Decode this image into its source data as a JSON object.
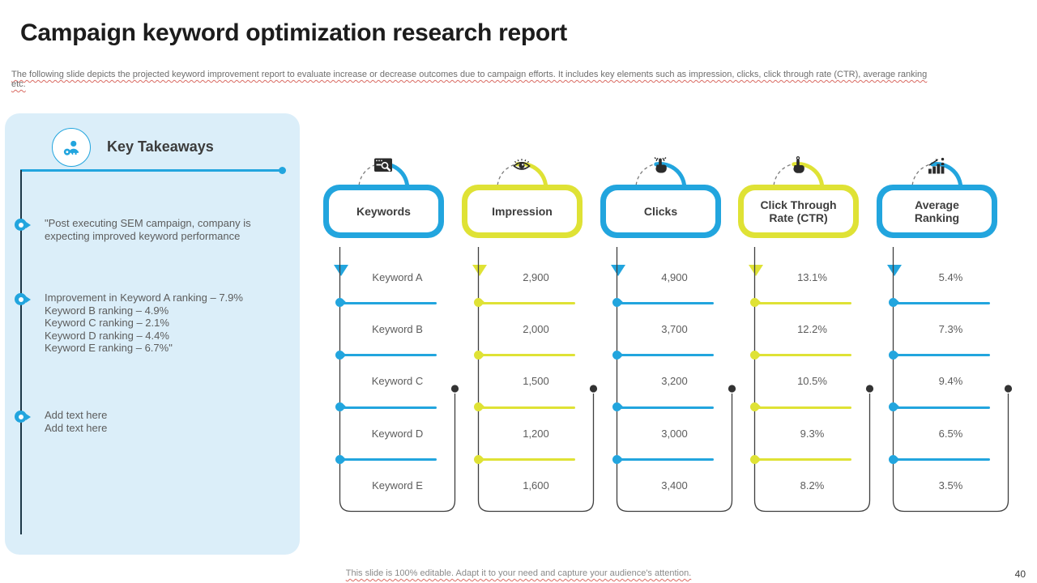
{
  "slide": {
    "title": "Campaign keyword optimization research report",
    "subtitle": "The following slide depicts the projected keyword improvement report to evaluate increase or decrease outcomes due to campaign efforts. It includes key elements such as impression, clicks, click through rate (CTR), average ranking etc.",
    "footer": "This slide is 100% editable. Adapt it to your need and capture your audience's attention.",
    "page_number": "40"
  },
  "colors": {
    "blue": "#22A5DE",
    "yellow": "#DFE235",
    "panel_bg": "#DBEEF9",
    "dark_line": "#1E3848",
    "box_line": "#3F3F3F",
    "text_gray": "#5C5C5C",
    "red_underline": "#D96A62"
  },
  "key_takeaways": {
    "icon": "person-key-icon",
    "title": "Key Takeaways",
    "bullets": [
      {
        "lines": [
          "\"Post executing SEM campaign, company is expecting improved keyword performance"
        ]
      },
      {
        "lines": [
          "Improvement in Keyword A ranking – 7.9%",
          "Keyword B ranking – 4.9%",
          "Keyword C ranking – 2.1%",
          "Keyword D ranking – 4.4%",
          "Keyword E ranking – 6.7%\""
        ]
      },
      {
        "lines": [
          "Add text here",
          "Add text here"
        ]
      }
    ]
  },
  "table": {
    "columns": [
      {
        "label": "Keywords",
        "accent": "blue",
        "icon": "keyword-search-icon",
        "values": [
          "Keyword A",
          "Keyword B",
          "Keyword C",
          "Keyword D",
          "Keyword E"
        ]
      },
      {
        "label": "Impression",
        "accent": "yellow",
        "icon": "eye-icon",
        "values": [
          "2,900",
          "2,000",
          "1,500",
          "1,200",
          "1,600"
        ]
      },
      {
        "label": "Clicks",
        "accent": "blue",
        "icon": "tap-click-icon",
        "values": [
          "4,900",
          "3,700",
          "3,200",
          "3,000",
          "3,400"
        ]
      },
      {
        "label": "Click Through Rate (CTR)",
        "accent": "yellow",
        "icon": "pointer-click-icon",
        "values": [
          "13.1%",
          "12.2%",
          "10.5%",
          "9.3%",
          "8.2%"
        ]
      },
      {
        "label": "Average Ranking",
        "accent": "blue",
        "icon": "ranking-growth-icon",
        "values": [
          "5.4%",
          "7.3%",
          "9.4%",
          "6.5%",
          "3.5%"
        ]
      }
    ]
  }
}
